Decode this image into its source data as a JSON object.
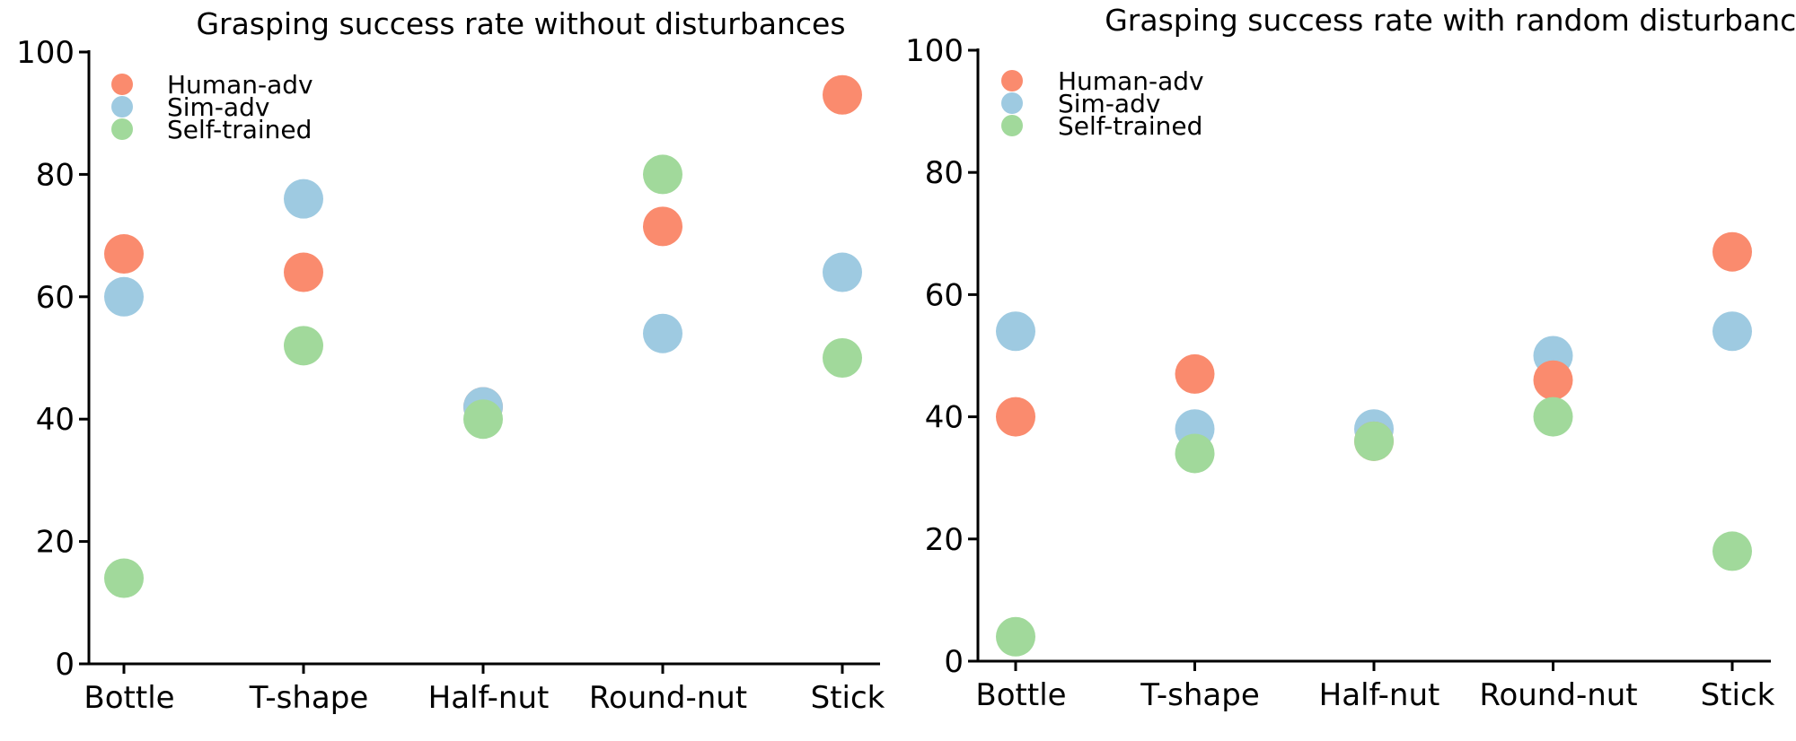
{
  "chart_data": [
    {
      "type": "scatter",
      "title": "Grasping success rate without disturbances",
      "categories": [
        "Bottle",
        "T-shape",
        "Half-nut",
        "Round-nut",
        "Stick"
      ],
      "ylim": [
        0,
        100
      ],
      "yticks": [
        0,
        20,
        40,
        60,
        80,
        100
      ],
      "grid": false,
      "legend_position": "top-left",
      "series": [
        {
          "name": "Human-adv",
          "color": "#FA8B6E",
          "values": [
            67,
            64,
            42,
            71.5,
            93
          ]
        },
        {
          "name": "Sim-adv",
          "color": "#9ECAE1",
          "values": [
            60,
            76,
            42,
            54,
            64
          ]
        },
        {
          "name": "Self-trained",
          "color": "#A1D99B",
          "values": [
            14,
            52,
            40,
            80,
            50
          ]
        }
      ],
      "draw_order": [
        0,
        1,
        2
      ]
    },
    {
      "type": "scatter",
      "title": "Grasping success rate with random disturbances",
      "categories": [
        "Bottle",
        "T-shape",
        "Half-nut",
        "Round-nut",
        "Stick"
      ],
      "ylim": [
        0,
        100
      ],
      "yticks": [
        0,
        20,
        40,
        60,
        80,
        100
      ],
      "grid": false,
      "legend_position": "top-left",
      "series": [
        {
          "name": "Human-adv",
          "color": "#FA8B6E",
          "values": [
            40,
            47,
            36,
            46,
            67
          ]
        },
        {
          "name": "Sim-adv",
          "color": "#9ECAE1",
          "values": [
            54,
            38,
            38,
            50,
            54
          ]
        },
        {
          "name": "Self-trained",
          "color": "#A1D99B",
          "values": [
            4,
            34,
            36,
            40,
            18
          ]
        }
      ],
      "draw_order": [
        1,
        0,
        2
      ]
    }
  ]
}
